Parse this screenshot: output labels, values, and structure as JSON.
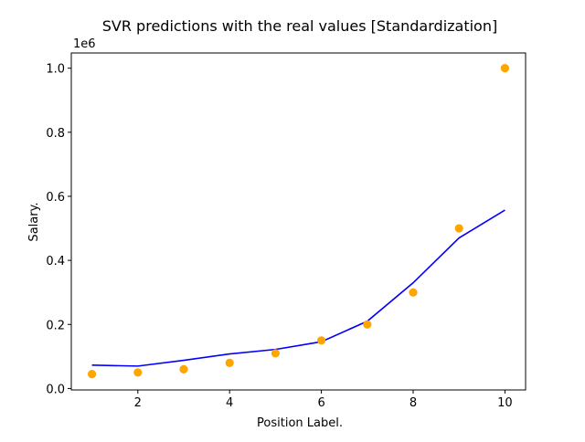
{
  "chart_data": {
    "type": "scatter",
    "title": "SVR predictions with the real values [Standardization]",
    "xlabel": "Position Label.",
    "ylabel": "Salary.",
    "y_offset_label": "1e6",
    "xlim": [
      0.55,
      10.45
    ],
    "ylim": [
      -0.0045,
      1.0475
    ],
    "xticks": [
      2,
      4,
      6,
      8,
      10
    ],
    "xtick_labels": [
      "2",
      "4",
      "6",
      "8",
      "10"
    ],
    "yticks": [
      0.0,
      0.2,
      0.4,
      0.6,
      0.8,
      1.0
    ],
    "ytick_labels": [
      "0.0",
      "0.2",
      "0.4",
      "0.6",
      "0.8",
      "1.0"
    ],
    "grid": false,
    "series": [
      {
        "kind": "scatter",
        "color": "#ffa500",
        "x": [
          1,
          2,
          3,
          4,
          5,
          6,
          7,
          8,
          9,
          10
        ],
        "y": [
          0.045,
          0.05,
          0.06,
          0.08,
          0.11,
          0.15,
          0.2,
          0.3,
          0.5,
          1.0
        ]
      },
      {
        "kind": "line",
        "color": "#0000ff",
        "x": [
          1,
          2,
          3,
          4,
          5,
          6,
          7,
          8,
          9,
          10
        ],
        "y": [
          0.073,
          0.07,
          0.088,
          0.108,
          0.122,
          0.146,
          0.21,
          0.33,
          0.47,
          0.557
        ]
      }
    ]
  }
}
